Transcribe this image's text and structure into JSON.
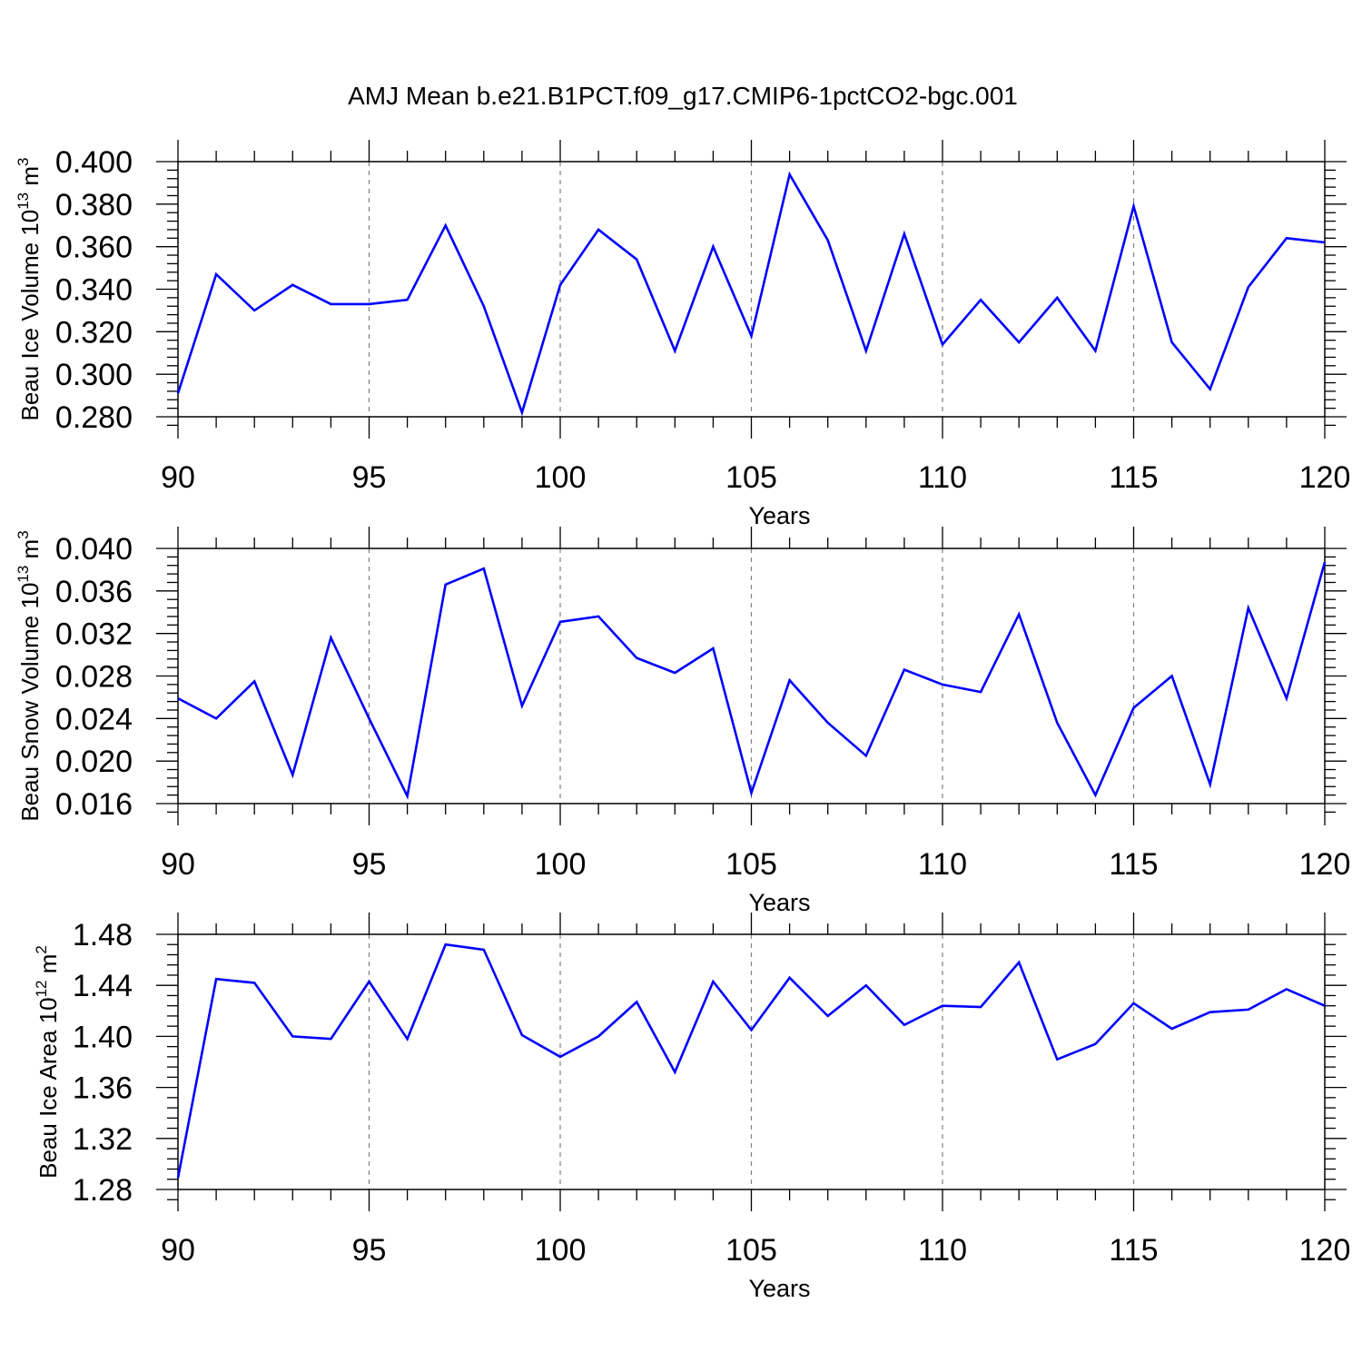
{
  "title": "AMJ Mean b.e21.B1PCT.f09_g17.CMIP6-1pctCO2-bgc.001",
  "colors": {
    "line": "#0000ff",
    "axis": "#000000",
    "grid": "#808080"
  },
  "chart_data": [
    {
      "type": "line",
      "xlabel": "Years",
      "ylabel": {
        "main": "Beau Ice Volume 10",
        "exp": "13",
        "unit": " m",
        "unit_exp": "3"
      },
      "xlim": [
        90,
        120
      ],
      "ylim": [
        0.28,
        0.4
      ],
      "x_ticks": [
        "90",
        "95",
        "100",
        "105",
        "110",
        "115",
        "120"
      ],
      "y_ticks": [
        "0.280",
        "0.300",
        "0.320",
        "0.340",
        "0.360",
        "0.380",
        "0.400"
      ],
      "grid": "vertical dashed",
      "x": [
        90,
        91,
        92,
        93,
        94,
        95,
        96,
        97,
        98,
        99,
        100,
        101,
        102,
        103,
        104,
        105,
        106,
        107,
        108,
        109,
        110,
        111,
        112,
        113,
        114,
        115,
        116,
        117,
        118,
        119,
        120
      ],
      "series": [
        {
          "values": [
            0.291,
            0.347,
            0.33,
            0.342,
            0.333,
            0.333,
            0.335,
            0.37,
            0.332,
            0.282,
            0.342,
            0.368,
            0.354,
            0.311,
            0.36,
            0.318,
            0.394,
            0.363,
            0.311,
            0.366,
            0.314,
            0.335,
            0.315,
            0.336,
            0.311,
            0.379,
            0.315,
            0.293,
            0.341,
            0.364,
            0.362
          ]
        }
      ]
    },
    {
      "type": "line",
      "xlabel": "Years",
      "ylabel": {
        "main": "Beau Snow Volume 10",
        "exp": "13",
        "unit": " m",
        "unit_exp": "3"
      },
      "xlim": [
        90,
        120
      ],
      "ylim": [
        0.016,
        0.04
      ],
      "x_ticks": [
        "90",
        "95",
        "100",
        "105",
        "110",
        "115",
        "120"
      ],
      "y_ticks": [
        "0.016",
        "0.020",
        "0.024",
        "0.028",
        "0.032",
        "0.036",
        "0.040"
      ],
      "grid": "vertical dashed",
      "x": [
        90,
        91,
        92,
        93,
        94,
        95,
        96,
        97,
        98,
        99,
        100,
        101,
        102,
        103,
        104,
        105,
        106,
        107,
        108,
        109,
        110,
        111,
        112,
        113,
        114,
        115,
        116,
        117,
        118,
        119,
        120
      ],
      "series": [
        {
          "values": [
            0.0259,
            0.024,
            0.0275,
            0.0187,
            0.0316,
            0.024,
            0.0167,
            0.0366,
            0.0381,
            0.0252,
            0.0331,
            0.0336,
            0.0297,
            0.0283,
            0.0306,
            0.017,
            0.0276,
            0.0236,
            0.0205,
            0.0286,
            0.0272,
            0.0265,
            0.0338,
            0.0236,
            0.0168,
            0.025,
            0.028,
            0.0178,
            0.0344,
            0.0259,
            0.0387
          ]
        }
      ]
    },
    {
      "type": "line",
      "xlabel": "Years",
      "ylabel": {
        "main": "Beau Ice Area 10",
        "exp": "12",
        "unit": " m",
        "unit_exp": "2"
      },
      "xlim": [
        90,
        120
      ],
      "ylim": [
        1.28,
        1.48
      ],
      "x_ticks": [
        "90",
        "95",
        "100",
        "105",
        "110",
        "115",
        "120"
      ],
      "y_ticks": [
        "1.28",
        "1.32",
        "1.36",
        "1.40",
        "1.44",
        "1.48"
      ],
      "grid": "vertical dashed",
      "x": [
        90,
        91,
        92,
        93,
        94,
        95,
        96,
        97,
        98,
        99,
        100,
        101,
        102,
        103,
        104,
        105,
        106,
        107,
        108,
        109,
        110,
        111,
        112,
        113,
        114,
        115,
        116,
        117,
        118,
        119,
        120
      ],
      "series": [
        {
          "values": [
            1.289,
            1.445,
            1.442,
            1.4,
            1.398,
            1.443,
            1.398,
            1.472,
            1.468,
            1.401,
            1.384,
            1.4,
            1.427,
            1.372,
            1.443,
            1.405,
            1.446,
            1.416,
            1.44,
            1.409,
            1.424,
            1.423,
            1.458,
            1.382,
            1.394,
            1.426,
            1.406,
            1.419,
            1.421,
            1.437,
            1.424
          ]
        }
      ]
    }
  ]
}
